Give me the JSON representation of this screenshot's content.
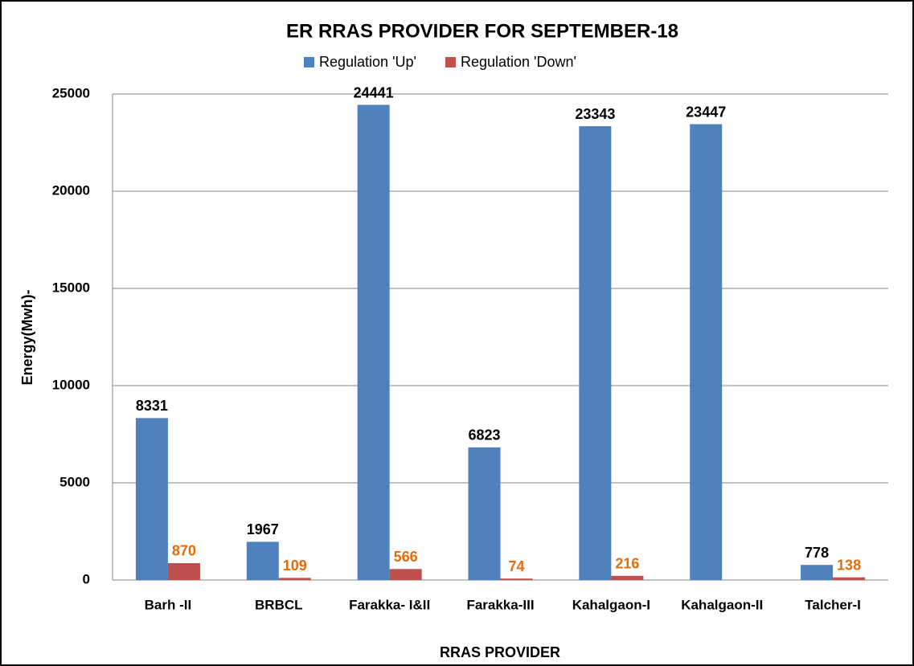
{
  "chart_data": {
    "type": "bar",
    "title": "ER RRAS PROVIDER FOR SEPTEMBER-18",
    "x_label": "RRAS PROVIDER",
    "y_label": "Energy(Mwh)-",
    "categories": [
      "Barh -II",
      "BRBCL",
      "Farakka- I&II",
      "Farakka-III",
      "Kahalgaon-I",
      "Kahalgaon-II",
      "Talcher-I"
    ],
    "series": [
      {
        "name": "Regulation 'Up'",
        "color": "#4f81bd",
        "label_color": "#000000",
        "values": [
          8331,
          1967,
          24441,
          6823,
          23343,
          23447,
          778
        ]
      },
      {
        "name": "Regulation 'Down'",
        "color": "#c0504d",
        "label_color": "#e46c0a",
        "values": [
          870,
          109,
          566,
          74,
          216,
          null,
          138
        ]
      }
    ],
    "ylim": [
      0,
      25000
    ],
    "yticks": [
      0,
      5000,
      10000,
      15000,
      20000,
      25000
    ],
    "grid": true,
    "legend": "top"
  }
}
